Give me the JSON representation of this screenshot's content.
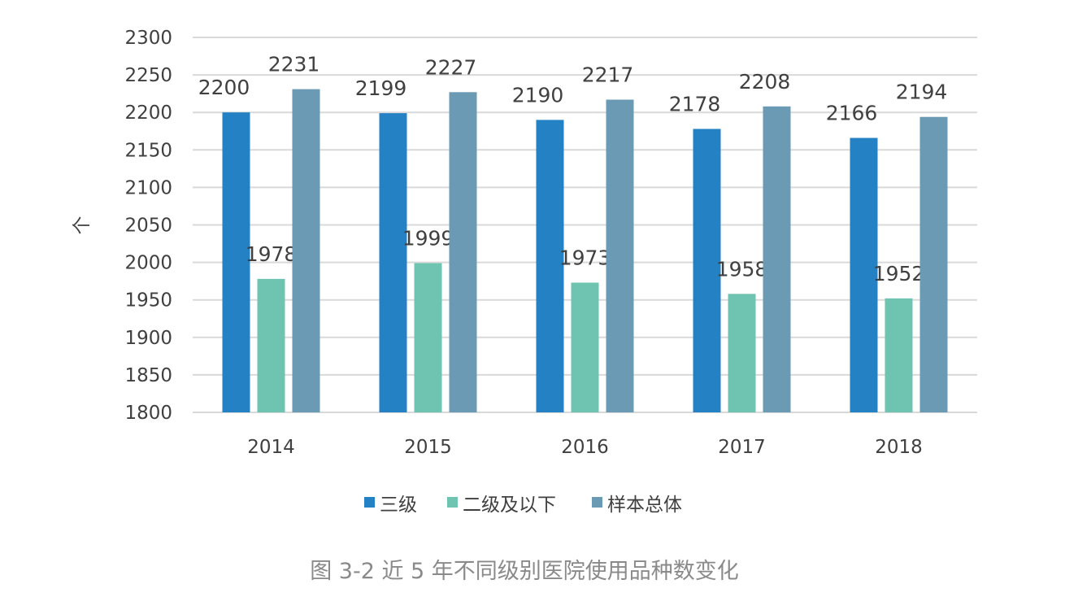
{
  "chart_data": {
    "type": "bar",
    "title": "图 3-2 近 5 年不同级别医院使用品种数变化",
    "xlabel": "",
    "ylabel": "个",
    "ylim": [
      1800,
      2300
    ],
    "yticks": [
      1800,
      1850,
      1900,
      1950,
      2000,
      2050,
      2100,
      2150,
      2200,
      2250,
      2300
    ],
    "grid": true,
    "legend_position": "bottom",
    "categories": [
      "2014",
      "2015",
      "2016",
      "2017",
      "2018"
    ],
    "series": [
      {
        "name": "三级",
        "color": "#2481C4",
        "values": [
          2200,
          2199,
          2190,
          2178,
          2166
        ]
      },
      {
        "name": "二级及以下",
        "color": "#6FC4B1",
        "values": [
          1978,
          1999,
          1973,
          1958,
          1952
        ]
      },
      {
        "name": "样本总体",
        "color": "#6B9AB5",
        "values": [
          2231,
          2227,
          2217,
          2208,
          2194
        ]
      }
    ]
  }
}
